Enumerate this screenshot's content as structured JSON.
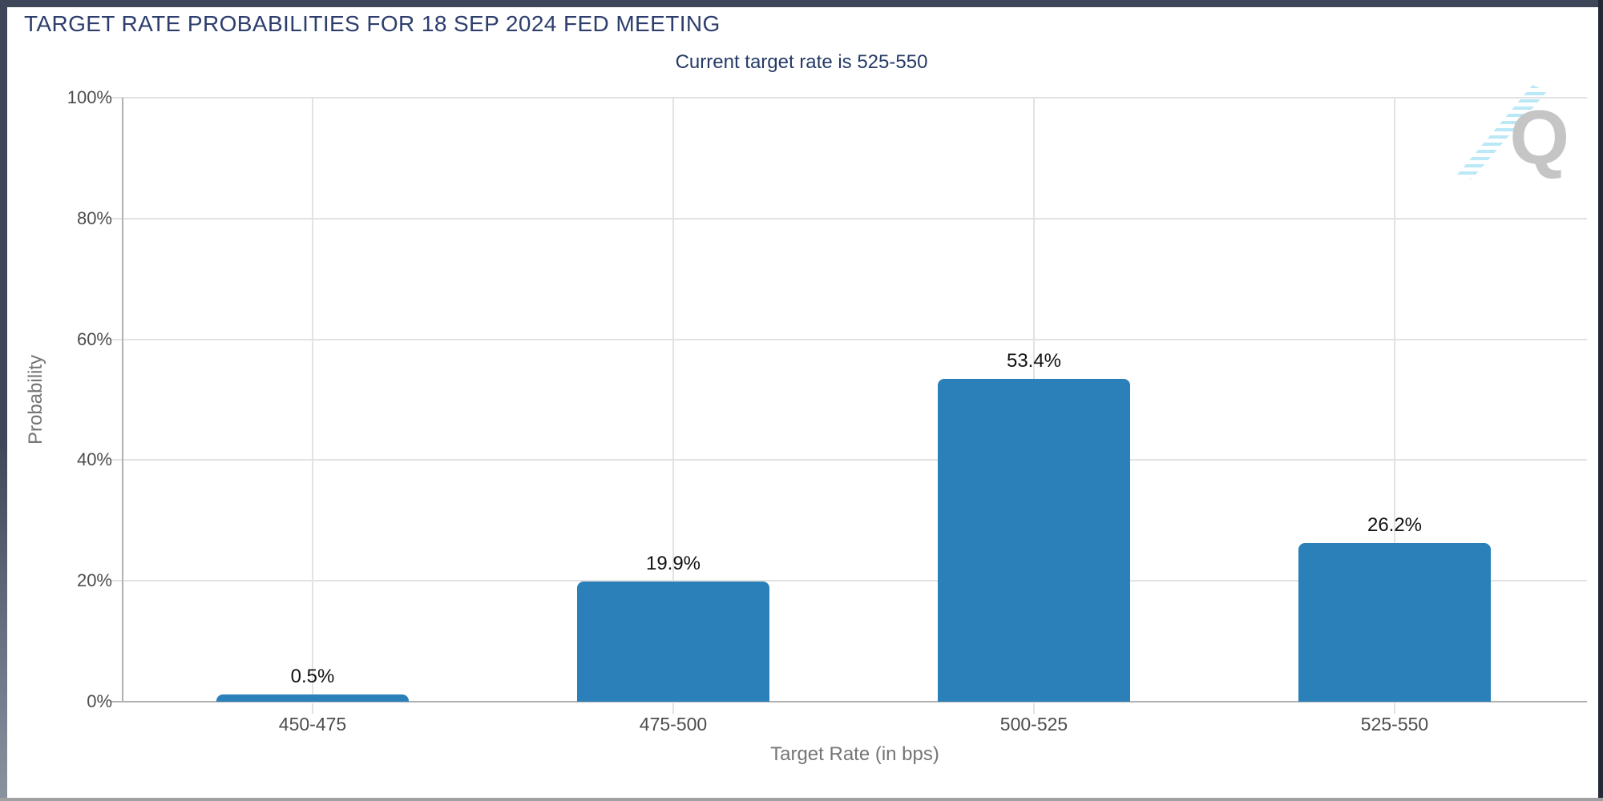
{
  "chart_data": {
    "type": "bar",
    "title": "TARGET RATE PROBABILITIES FOR 18 SEP 2024 FED MEETING",
    "subtitle": "Current target rate is 525-550",
    "categories": [
      "450-475",
      "475-500",
      "500-525",
      "525-550"
    ],
    "values": [
      0.5,
      19.9,
      53.4,
      26.2
    ],
    "value_labels": [
      "0.5%",
      "19.9%",
      "53.4%",
      "26.2%"
    ],
    "xlabel": "Target Rate (in bps)",
    "ylabel": "Probability",
    "ylim": [
      0,
      100
    ],
    "yticks": [
      0,
      20,
      40,
      60,
      80,
      100
    ],
    "ytick_labels": [
      "0%",
      "20%",
      "40%",
      "60%",
      "80%",
      "100%"
    ],
    "grid": true,
    "legend": "none",
    "bar_color": "#2b80b9"
  },
  "watermark": {
    "letter": "Q",
    "q_color": "#c5c5c5",
    "stripes_color": "#aee4f5"
  },
  "colors": {
    "bar": "#2b80b9",
    "title": "#2d3e6d",
    "subtitle": "#253a66",
    "grid": "#e2e2e2",
    "axis_line": "#b0b0b0",
    "tick_label": "#4d4d4d",
    "axis_title": "#757575",
    "value_label": "#111111",
    "frame": "#3d4759",
    "watermark_q": "#c5c5c5",
    "watermark_stripes": "#aee4f5"
  }
}
